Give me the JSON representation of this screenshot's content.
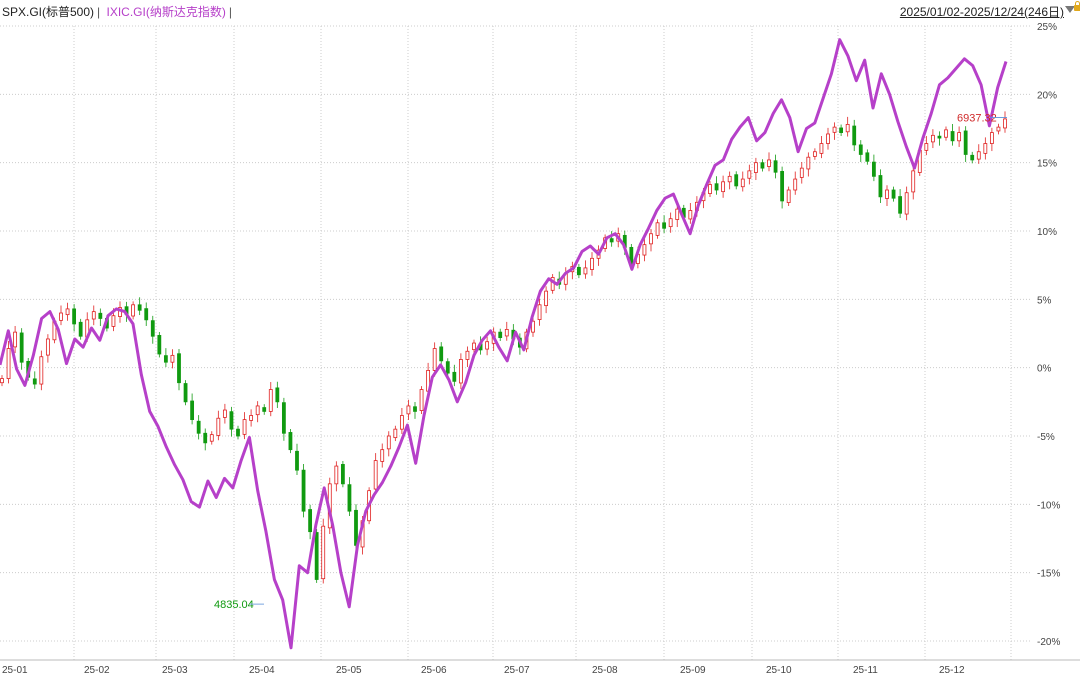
{
  "legend": {
    "spx": "SPX.GI(标普500)",
    "sep1": "|",
    "ixic": "IXIC.GI(纳斯达克指数)",
    "sep2": "|"
  },
  "range_label": "2025/01/02-2025/12/24(246日)",
  "icons": {
    "dropdown": "triangle-down-icon",
    "lock": "lock-icon"
  },
  "colors": {
    "up": "#e02020",
    "down": "#109a10",
    "ixic": "#b640c9",
    "grid": "#cccccc",
    "low_label": "#109a10",
    "last_label": "#d02a2a"
  },
  "chart_data": {
    "type": "line",
    "y_unit": "%",
    "ylim": [
      -21,
      25.5
    ],
    "y_ticks": [
      "25%",
      "20%",
      "15%",
      "10%",
      "5%",
      "0%",
      "-5%",
      "-10%",
      "-15%",
      "-20%"
    ],
    "x_ticks": [
      "25-01",
      "25-02",
      "25-03",
      "25-04",
      "25-05",
      "25-06",
      "25-07",
      "25-08",
      "25-09",
      "25-10",
      "25-11",
      "25-12"
    ],
    "grid": true,
    "annotations": {
      "low": "4835.04",
      "last": "6937.32"
    },
    "series": [
      {
        "name": "SPX.GI(标普500)",
        "style": "candlestick",
        "values": [
          -0.8,
          1.4,
          2.6,
          0.4,
          -0.7,
          -1.2,
          0.8,
          2.1,
          3.4,
          4.0,
          4.3,
          3.2,
          2.3,
          3.5,
          4.1,
          3.6,
          2.9,
          3.8,
          4.4,
          3.9,
          4.6,
          4.2,
          3.5,
          2.3,
          1.0,
          0.4,
          0.9,
          -1.1,
          -2.5,
          -3.8,
          -4.8,
          -5.5,
          -4.9,
          -3.7,
          -3.1,
          -4.5,
          -5.0,
          -3.8,
          -3.5,
          -2.8,
          -3.2,
          -1.6,
          -2.5,
          -4.8,
          -6.0,
          -7.5,
          -10.5,
          -12.0,
          -15.5,
          -11.6,
          -8.5,
          -7.2,
          -8.5,
          -10.5,
          -13.0,
          -11.2,
          -9.0,
          -6.8,
          -6.0,
          -5.0,
          -4.5,
          -3.5,
          -2.8,
          -3.2,
          -1.6,
          -0.2,
          1.4,
          0.5,
          -0.4,
          -1.0,
          0.6,
          1.2,
          1.8,
          1.3,
          1.9,
          2.6,
          2.2,
          2.8,
          2.1,
          1.5,
          2.6,
          3.4,
          4.6,
          5.6,
          6.6,
          6.1,
          6.9,
          7.4,
          6.8,
          7.3,
          8.0,
          8.6,
          9.5,
          9.2,
          9.8,
          8.8,
          7.5,
          8.3,
          9.0,
          9.8,
          10.6,
          10.2,
          10.9,
          11.6,
          11.0,
          11.5,
          12.1,
          12.8,
          13.4,
          13.0,
          13.6,
          14.0,
          13.3,
          13.8,
          14.4,
          15.0,
          14.6,
          15.2,
          14.3,
          12.2,
          13.0,
          13.8,
          14.6,
          15.4,
          15.8,
          16.4,
          17.1,
          17.6,
          17.2,
          17.8,
          16.3,
          15.6,
          15.1,
          14.0,
          12.5,
          13.0,
          12.4,
          11.3,
          12.8,
          14.4,
          15.9,
          16.4,
          17.0,
          16.8,
          17.4,
          16.6,
          17.2,
          15.6,
          15.2,
          15.8,
          16.4,
          17.2,
          17.6,
          18.2
        ]
      },
      {
        "name": "IXIC.GI(纳斯达克指数)",
        "style": "line",
        "values": [
          0.2,
          2.7,
          -0.1,
          -1.3,
          0.9,
          3.6,
          4.1,
          2.8,
          0.3,
          2.1,
          1.5,
          2.9,
          2.0,
          3.8,
          4.3,
          4.1,
          3.2,
          -0.5,
          -3.2,
          -4.3,
          -5.8,
          -7.1,
          -8.2,
          -9.8,
          -10.2,
          -8.3,
          -9.5,
          -8.1,
          -8.8,
          -6.8,
          -5.1,
          -9.0,
          -12.0,
          -15.5,
          -17.0,
          -20.5,
          -14.5,
          -15.0,
          -11.5,
          -8.8,
          -11.5,
          -15.0,
          -17.5,
          -13.0,
          -10.5,
          -9.3,
          -8.4,
          -7.2,
          -5.8,
          -4.2,
          -7.0,
          -3.5,
          -0.7,
          0.2,
          -0.9,
          -2.5,
          -1.1,
          0.9,
          2.0,
          2.7,
          1.5,
          0.5,
          2.6,
          1.3,
          3.7,
          5.6,
          6.5,
          6.1,
          6.9,
          7.3,
          8.5,
          8.9,
          8.3,
          9.5,
          9.8,
          9.0,
          7.2,
          9.0,
          10.2,
          11.5,
          12.4,
          12.7,
          11.2,
          9.8,
          11.9,
          13.4,
          14.8,
          15.2,
          16.7,
          17.6,
          18.3,
          16.6,
          17.2,
          18.6,
          19.6,
          18.3,
          15.8,
          17.5,
          17.9,
          19.7,
          21.5,
          24.0,
          22.8,
          21.0,
          22.5,
          19.0,
          21.5,
          20.0,
          18.0,
          16.2,
          14.6,
          16.8,
          18.6,
          20.7,
          21.2,
          21.9,
          22.6,
          22.1,
          20.7,
          17.7,
          20.5,
          22.4
        ]
      }
    ]
  }
}
